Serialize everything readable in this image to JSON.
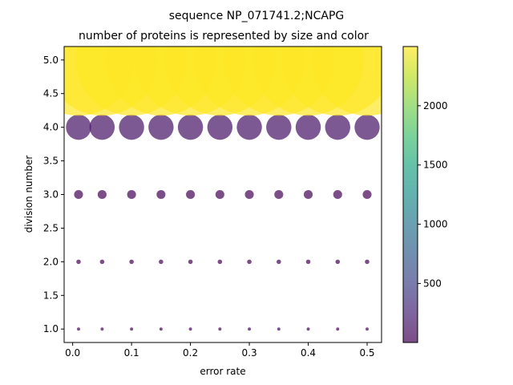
{
  "chart_data": {
    "type": "scatter",
    "title": "sequence NP_071741.2;NCAPG",
    "subtitle": "number of proteins is represented by size and color",
    "xlabel": "error rate",
    "ylabel": "division number",
    "x": [
      0.01,
      0.05,
      0.1,
      0.15,
      0.2,
      0.25,
      0.3,
      0.35,
      0.4,
      0.45,
      0.5
    ],
    "xlim": [
      -0.0145,
      0.5245
    ],
    "ylim": [
      0.8,
      5.2
    ],
    "xticks": [
      0.0,
      0.1,
      0.2,
      0.3,
      0.4,
      0.5
    ],
    "xtick_labels": [
      "0.0",
      "0.1",
      "0.2",
      "0.3",
      "0.4",
      "0.5"
    ],
    "yticks": [
      1.0,
      1.5,
      2.0,
      2.5,
      3.0,
      3.5,
      4.0,
      4.5,
      5.0
    ],
    "ytick_labels": [
      "1.0",
      "1.5",
      "2.0",
      "2.5",
      "3.0",
      "3.5",
      "4.0",
      "4.5",
      "5.0"
    ],
    "series": [
      {
        "division": 1,
        "values": [
          2,
          2,
          2,
          2,
          2,
          2,
          2,
          2,
          2,
          2,
          2
        ]
      },
      {
        "division": 2,
        "values": [
          4,
          4,
          4,
          4,
          4,
          4,
          4,
          4,
          4,
          4,
          4
        ]
      },
      {
        "division": 3,
        "values": [
          16,
          16,
          16,
          16,
          16,
          16,
          16,
          16,
          16,
          16,
          16
        ]
      },
      {
        "division": 4,
        "values": [
          128,
          128,
          128,
          128,
          128,
          128,
          128,
          128,
          128,
          128,
          128
        ]
      },
      {
        "division": 5,
        "values": [
          2500,
          2500,
          2500,
          2500,
          2500,
          2500,
          2500,
          2500,
          2500,
          2500,
          2500
        ]
      }
    ],
    "colorbar": {
      "colormap": "viridis",
      "range": [
        2,
        2500
      ],
      "ticks": [
        500,
        1000,
        1500,
        2000
      ],
      "tick_labels": [
        "500",
        "1000",
        "1500",
        "2000"
      ]
    },
    "marker_alpha": 0.7,
    "grid": false,
    "legend": "none"
  }
}
